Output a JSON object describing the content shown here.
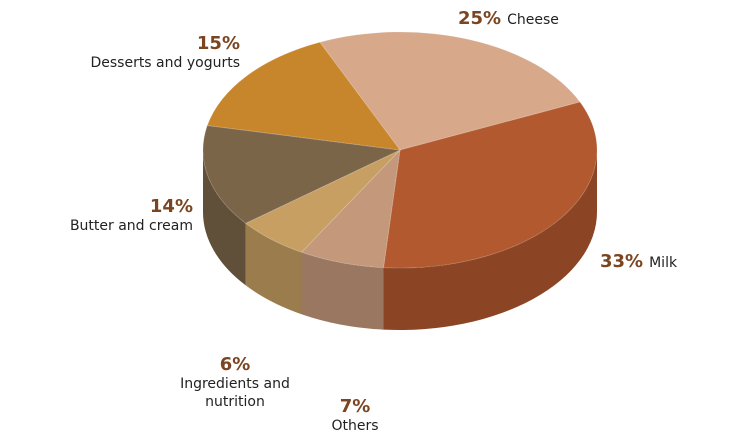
{
  "chart_data": {
    "type": "pie",
    "categories": [
      "Cheese",
      "Milk",
      "Others",
      "Ingredients and nutrition",
      "Butter and cream",
      "Desserts and yogurts"
    ],
    "values": [
      25,
      33,
      7,
      6,
      14,
      15
    ],
    "value_labels": [
      "25%",
      "33%",
      "7%",
      "6%",
      "14%",
      "15%"
    ],
    "colors": [
      "#d7a88a",
      "#b2592f",
      "#c4987b",
      "#c79f62",
      "#7b6549",
      "#c8862c"
    ]
  }
}
